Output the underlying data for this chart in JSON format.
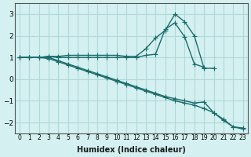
{
  "xlabel": "Humidex (Indice chaleur)",
  "x": [
    0,
    1,
    2,
    3,
    4,
    5,
    6,
    7,
    8,
    9,
    10,
    11,
    12,
    13,
    14,
    15,
    16,
    17,
    18,
    19,
    20,
    21,
    22,
    23
  ],
  "line1": [
    1.0,
    1.0,
    1.0,
    1.05,
    1.05,
    1.1,
    1.1,
    1.1,
    1.1,
    1.1,
    1.1,
    1.05,
    1.05,
    1.4,
    1.9,
    2.25,
    3.0,
    2.65,
    2.0,
    0.5,
    0.5,
    null,
    null,
    null
  ],
  "line2": [
    1.0,
    1.0,
    1.0,
    1.05,
    1.0,
    1.0,
    1.0,
    1.0,
    1.0,
    1.0,
    1.0,
    1.0,
    1.0,
    1.1,
    1.15,
    2.3,
    2.6,
    1.95,
    0.7,
    0.55,
    null,
    null,
    null,
    null
  ],
  "line3": [
    1.0,
    1.0,
    1.0,
    1.0,
    0.85,
    0.7,
    0.55,
    0.4,
    0.25,
    0.1,
    -0.05,
    -0.2,
    -0.35,
    -0.5,
    -0.65,
    -0.8,
    -0.9,
    -1.0,
    -1.1,
    -1.05,
    -1.55,
    -1.85,
    -2.2,
    -2.25
  ],
  "line4": [
    1.0,
    1.0,
    1.0,
    0.95,
    0.8,
    0.65,
    0.5,
    0.35,
    0.2,
    0.05,
    -0.1,
    -0.25,
    -0.4,
    -0.55,
    -0.7,
    -0.85,
    -1.0,
    -1.1,
    -1.2,
    -1.35,
    -1.55,
    -1.9,
    -2.2,
    -2.3
  ],
  "bg_color": "#d4f0f0",
  "grid_color": "#b0d8d8",
  "line_color": "#1a6b6b",
  "ylim": [
    -2.5,
    3.5
  ],
  "yticks": [
    -2,
    -1,
    0,
    1,
    2,
    3
  ],
  "xlim": [
    -0.5,
    23.5
  ],
  "marker": "+"
}
